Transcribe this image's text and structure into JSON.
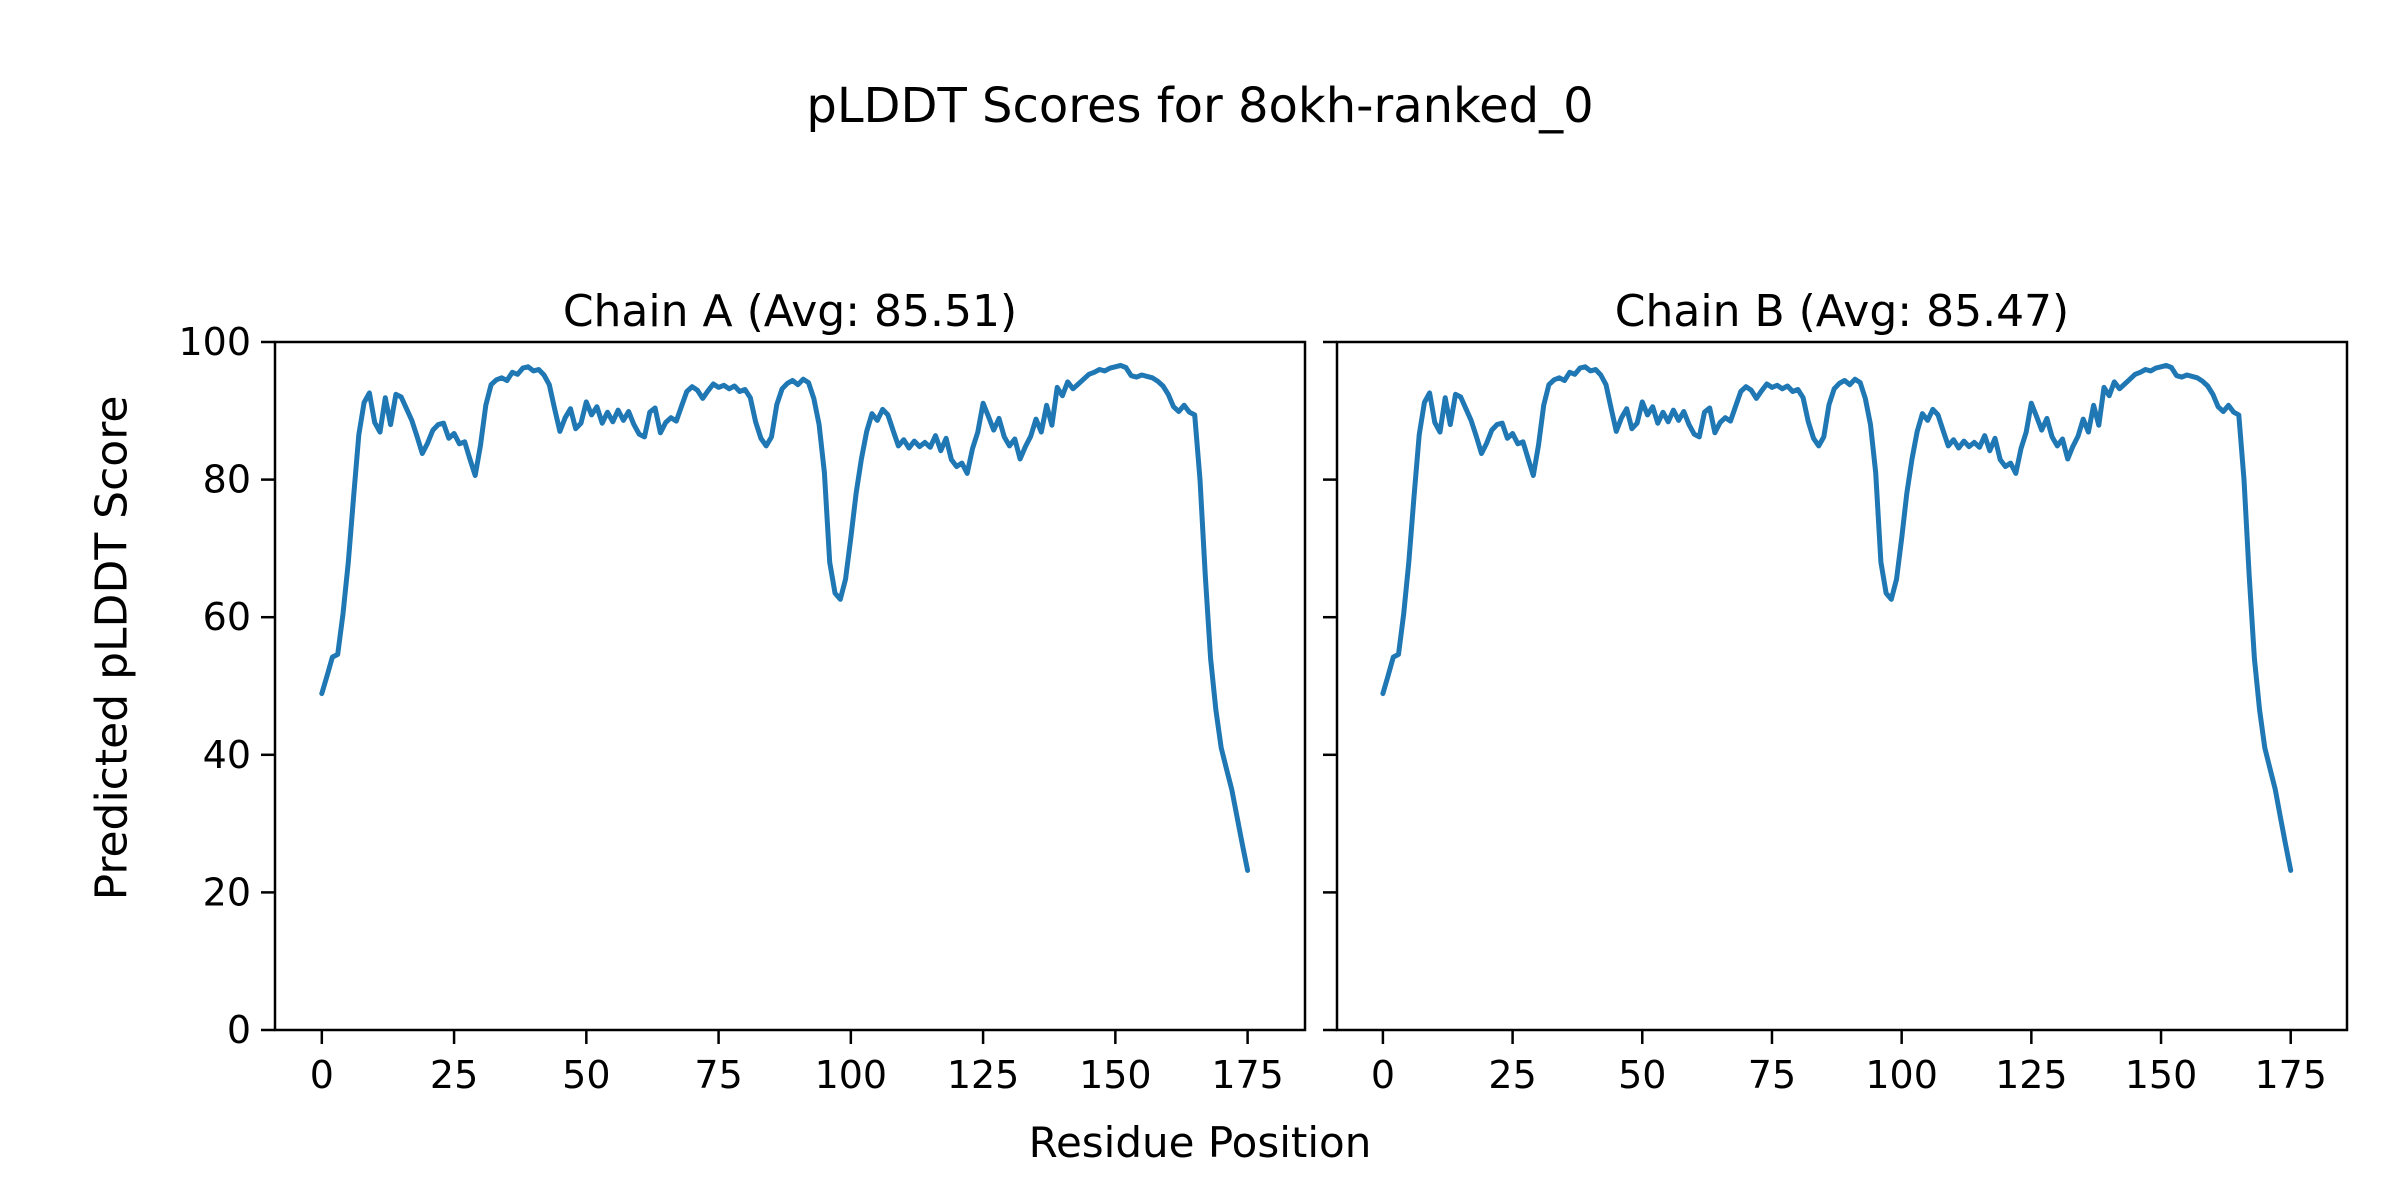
{
  "figure": {
    "background": "#ffffff",
    "text_color": "#000000"
  },
  "chart_data": {
    "type": "line",
    "title": "pLDDT Scores for 8okh-ranked_0",
    "xlabel": "Residue Position",
    "ylabel": "Predicted pLDDT Score",
    "x_ticks": [
      0,
      25,
      50,
      75,
      100,
      125,
      150,
      175
    ],
    "y_ticks": [
      0,
      20,
      40,
      60,
      80,
      100
    ],
    "xlim": [
      -8.85,
      185.85
    ],
    "ylim": [
      0,
      100
    ],
    "grid": false,
    "legend": "none",
    "line_color": "#1f77b4",
    "n_residues": 176,
    "x_start": 0,
    "panels": [
      {
        "title": "Chain A (Avg: 85.51)",
        "series_name": "Chain A pLDDT",
        "avg": 85.51,
        "show_y_tick_labels": true,
        "values": [
          48.9,
          51.5,
          54.2,
          54.6,
          60.5,
          68.0,
          77.5,
          86.5,
          91.2,
          92.6,
          88.3,
          86.9,
          91.9,
          88.0,
          92.4,
          92.0,
          90.3,
          88.6,
          86.3,
          83.8,
          85.3,
          87.2,
          88.0,
          88.2,
          86.0,
          86.7,
          85.2,
          85.5,
          83.0,
          80.6,
          85.0,
          90.8,
          93.8,
          94.5,
          94.8,
          94.4,
          95.6,
          95.3,
          96.2,
          96.4,
          95.8,
          96.0,
          95.2,
          93.8,
          90.3,
          87.0,
          89.0,
          90.3,
          87.4,
          88.2,
          91.3,
          89.4,
          90.6,
          88.2,
          89.8,
          88.4,
          90.1,
          88.6,
          89.9,
          88.0,
          86.6,
          86.2,
          89.8,
          90.4,
          86.8,
          88.3,
          89.0,
          88.5,
          90.7,
          92.8,
          93.5,
          93.0,
          91.8,
          92.9,
          93.9,
          93.4,
          93.7,
          93.2,
          93.6,
          92.8,
          93.1,
          91.9,
          88.4,
          86.0,
          84.9,
          86.2,
          90.9,
          93.2,
          94.0,
          94.4,
          93.8,
          94.6,
          94.1,
          91.8,
          88.0,
          81.0,
          68.0,
          63.5,
          62.6,
          65.5,
          71.5,
          78.0,
          83.0,
          87.0,
          89.6,
          88.6,
          90.2,
          89.4,
          87.1,
          84.9,
          85.8,
          84.6,
          85.6,
          84.8,
          85.4,
          84.7,
          86.4,
          84.2,
          86.0,
          82.9,
          81.9,
          82.4,
          80.9,
          84.5,
          86.9,
          91.1,
          89.2,
          87.2,
          88.9,
          86.2,
          84.9,
          85.9,
          83.0,
          84.8,
          86.3,
          88.8,
          86.9,
          90.8,
          87.9,
          93.4,
          92.2,
          94.2,
          93.2,
          93.9,
          94.6,
          95.3,
          95.6,
          96.0,
          95.8,
          96.2,
          96.4,
          96.6,
          96.3,
          95.1,
          94.9,
          95.2,
          95.0,
          94.8,
          94.3,
          93.6,
          92.4,
          90.6,
          89.9,
          90.8,
          89.8,
          89.4,
          80.0,
          66.0,
          54.0,
          46.5,
          41.0,
          38.0,
          35.0,
          31.0,
          27.0,
          23.2
        ]
      },
      {
        "title": "Chain B (Avg: 85.47)",
        "series_name": "Chain B pLDDT",
        "avg": 85.47,
        "show_y_tick_labels": false,
        "values": [
          48.9,
          51.5,
          54.2,
          54.6,
          60.5,
          68.0,
          77.5,
          86.5,
          91.2,
          92.6,
          88.3,
          86.9,
          91.9,
          88.0,
          92.4,
          92.0,
          90.3,
          88.6,
          86.3,
          83.8,
          85.3,
          87.2,
          88.0,
          88.2,
          86.0,
          86.7,
          85.2,
          85.5,
          83.0,
          80.6,
          85.0,
          90.8,
          93.8,
          94.5,
          94.8,
          94.4,
          95.6,
          95.3,
          96.2,
          96.4,
          95.8,
          96.0,
          95.2,
          93.8,
          90.3,
          87.0,
          89.0,
          90.3,
          87.4,
          88.2,
          91.3,
          89.4,
          90.6,
          88.2,
          89.8,
          88.4,
          90.1,
          88.6,
          89.9,
          88.0,
          86.6,
          86.2,
          89.8,
          90.4,
          86.8,
          88.3,
          89.0,
          88.5,
          90.7,
          92.8,
          93.5,
          93.0,
          91.8,
          92.9,
          93.9,
          93.4,
          93.7,
          93.2,
          93.6,
          92.8,
          93.1,
          91.9,
          88.4,
          86.0,
          84.9,
          86.2,
          90.9,
          93.2,
          94.0,
          94.4,
          93.8,
          94.6,
          94.1,
          91.8,
          88.0,
          81.0,
          68.0,
          63.5,
          62.6,
          65.5,
          71.5,
          78.0,
          83.0,
          87.0,
          89.6,
          88.6,
          90.2,
          89.4,
          87.1,
          84.9,
          85.8,
          84.6,
          85.6,
          84.8,
          85.4,
          84.7,
          86.4,
          84.2,
          86.0,
          82.9,
          81.9,
          82.4,
          80.9,
          84.5,
          86.9,
          91.1,
          89.2,
          87.2,
          88.9,
          86.2,
          84.9,
          85.9,
          83.0,
          84.8,
          86.3,
          88.8,
          86.9,
          90.8,
          87.9,
          93.4,
          92.2,
          94.2,
          93.2,
          93.9,
          94.6,
          95.3,
          95.6,
          96.0,
          95.8,
          96.2,
          96.4,
          96.6,
          96.3,
          95.1,
          94.9,
          95.2,
          95.0,
          94.8,
          94.3,
          93.6,
          92.4,
          90.6,
          89.9,
          90.8,
          89.8,
          89.4,
          80.0,
          66.0,
          54.0,
          46.5,
          41.0,
          38.0,
          35.0,
          31.0,
          27.0,
          23.2
        ]
      }
    ]
  }
}
